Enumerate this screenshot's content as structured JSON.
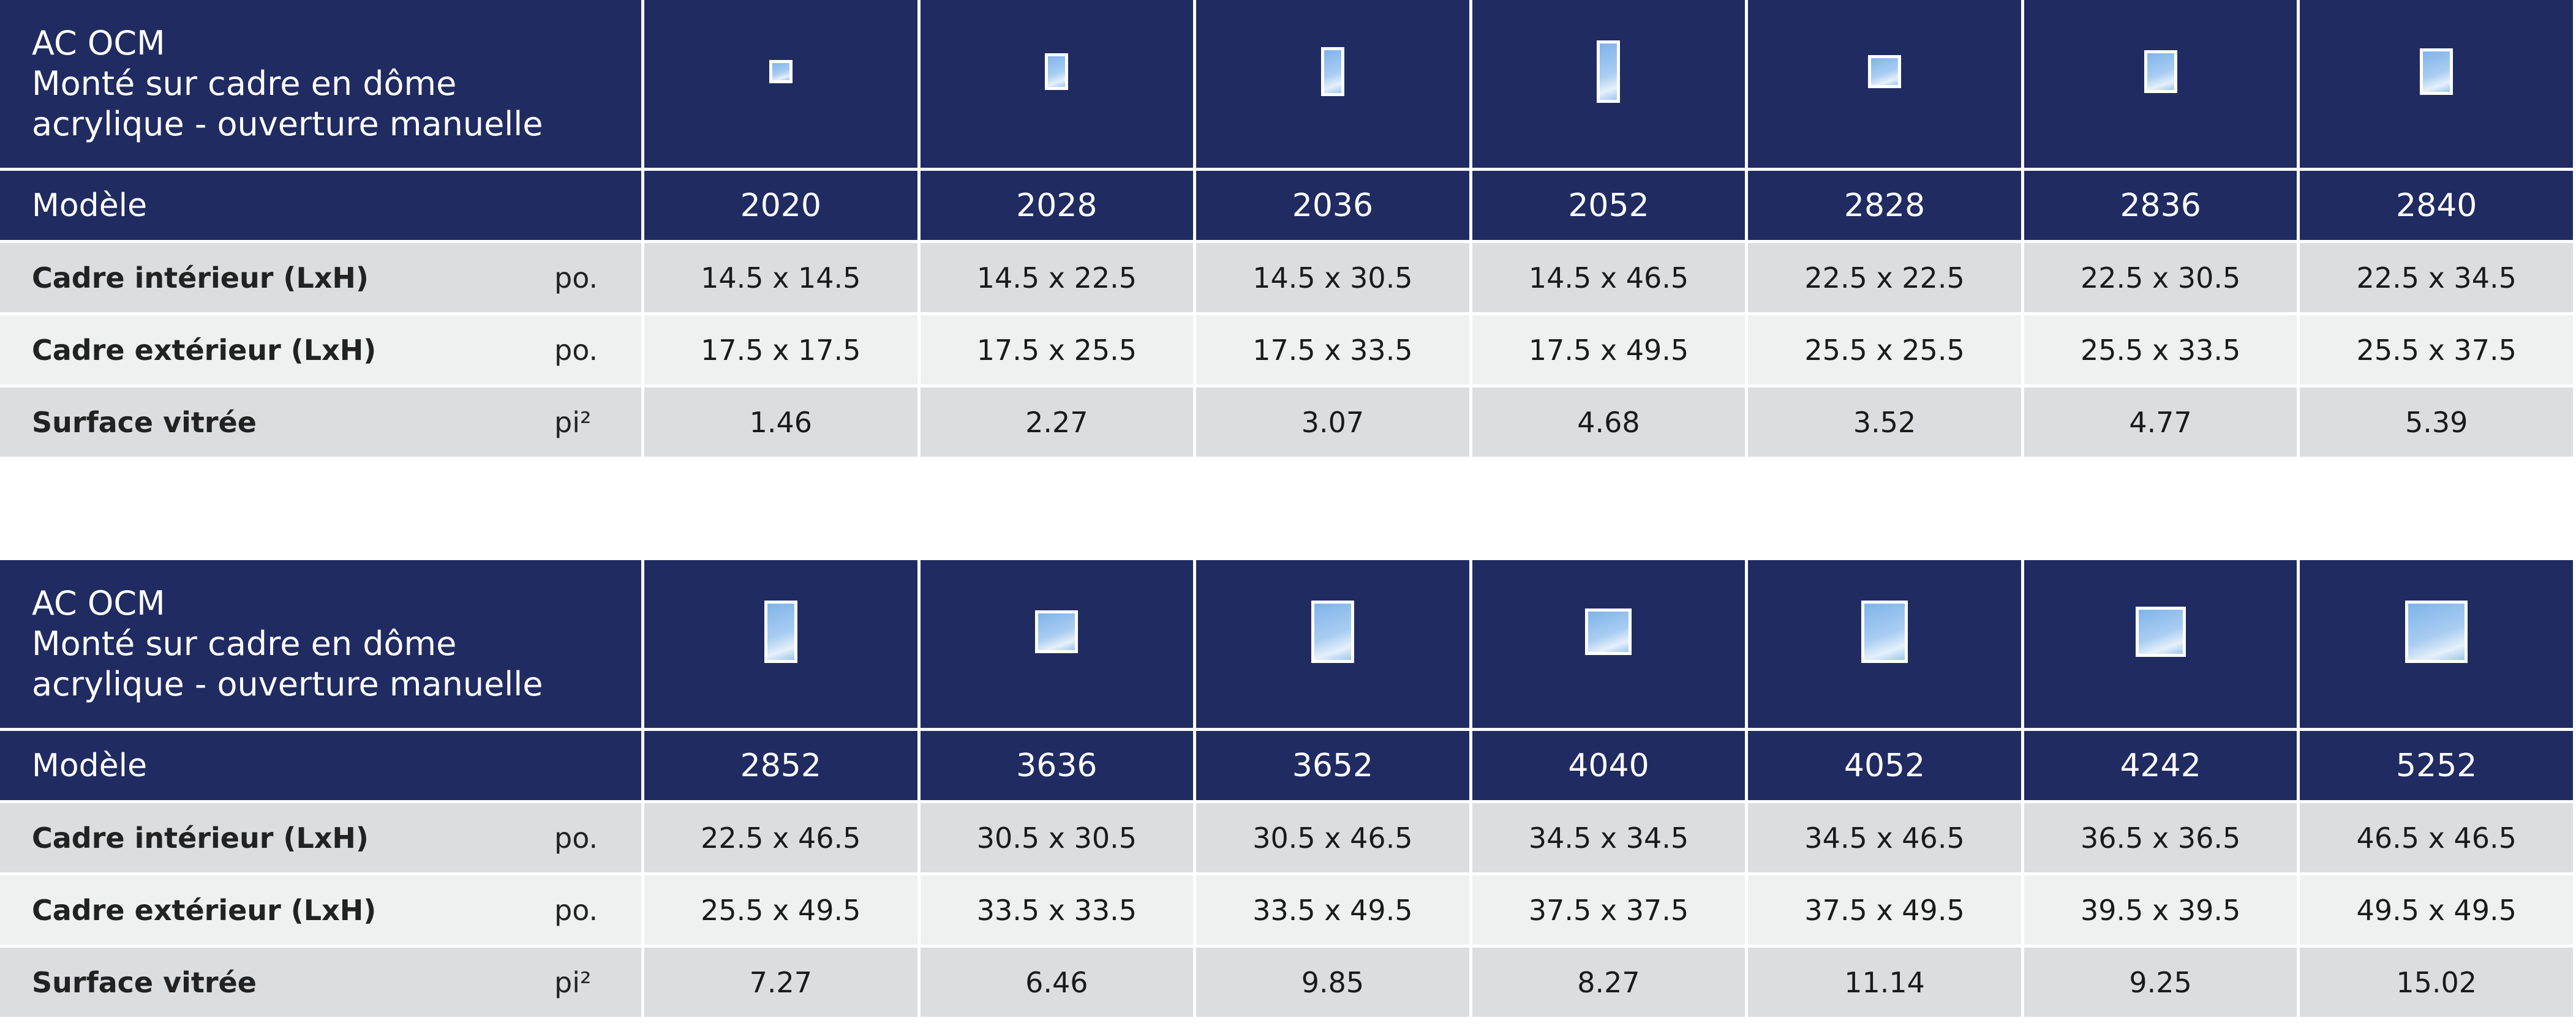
{
  "tables": [
    {
      "title": [
        "AC OCM",
        "Monté sur cadre en dôme",
        "acrylique - ouverture manuelle"
      ],
      "model_label": "Modèle",
      "models": [
        "2020",
        "2028",
        "2036",
        "2052",
        "2828",
        "2836",
        "2840"
      ],
      "rows": [
        {
          "label": "Cadre intérieur (LxH)",
          "unit": "po.",
          "values": [
            "14.5 x 14.5",
            "14.5 x 22.5",
            "14.5 x 30.5",
            "14.5 x 46.5",
            "22.5 x 22.5",
            "22.5 x 30.5",
            "22.5 x 34.5"
          ]
        },
        {
          "label": "Cadre extérieur (LxH)",
          "unit": "po.",
          "values": [
            "17.5 x 17.5",
            "17.5 x 25.5",
            "17.5 x 33.5",
            "17.5 x 49.5",
            "25.5 x 25.5",
            "25.5 x 33.5",
            "25.5 x 37.5"
          ]
        },
        {
          "label": "Surface vitrée",
          "unit": "pi²",
          "values": [
            "1.46",
            "2.27",
            "3.07",
            "4.68",
            "3.52",
            "4.77",
            "5.39"
          ]
        }
      ]
    },
    {
      "title": [
        "AC OCM",
        "Monté sur cadre en dôme",
        "acrylique - ouverture manuelle"
      ],
      "model_label": "Modèle",
      "models": [
        "2852",
        "3636",
        "3652",
        "4040",
        "4052",
        "4242",
        "5252"
      ],
      "rows": [
        {
          "label": "Cadre intérieur (LxH)",
          "unit": "po.",
          "values": [
            "22.5 x 46.5",
            "30.5 x 30.5",
            "30.5 x 46.5",
            "34.5 x 34.5",
            "34.5 x 46.5",
            "36.5 x 36.5",
            "46.5 x 46.5"
          ]
        },
        {
          "label": "Cadre extérieur (LxH)",
          "unit": "po.",
          "values": [
            "25.5 x 49.5",
            "33.5 x 33.5",
            "33.5 x 49.5",
            "37.5 x 37.5",
            "37.5 x 49.5",
            "39.5 x 39.5",
            "49.5 x 49.5"
          ]
        },
        {
          "label": "Surface vitrée",
          "unit": "pi²",
          "values": [
            "7.27",
            "6.46",
            "9.85",
            "8.27",
            "11.14",
            "9.25",
            "15.02"
          ]
        }
      ]
    }
  ]
}
